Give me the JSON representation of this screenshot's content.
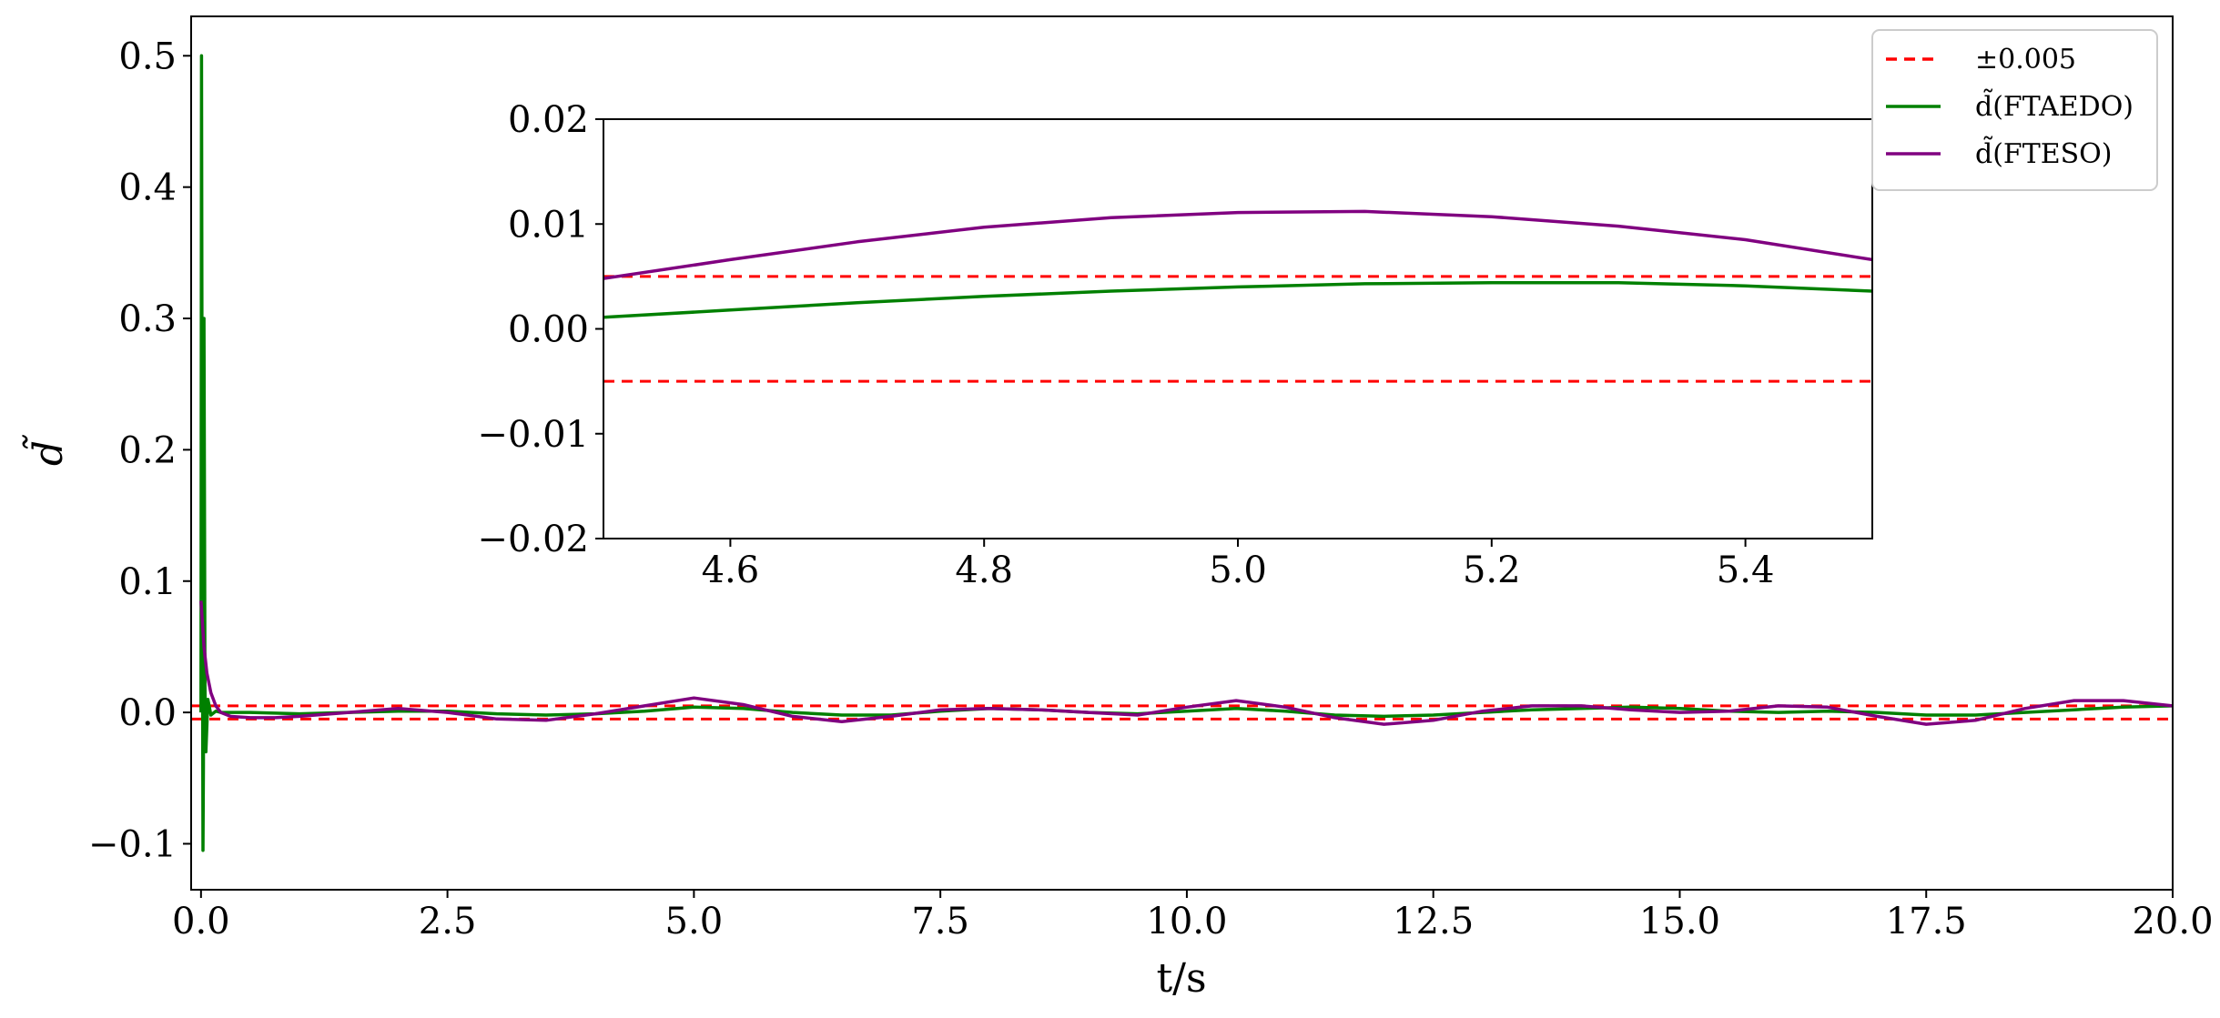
{
  "chart_data": [
    {
      "type": "line",
      "xlabel": "t/s",
      "ylabel": "d̃",
      "xlim": [
        -0.1,
        20.0
      ],
      "ylim": [
        -0.135,
        0.53
      ],
      "xticks": [
        0.0,
        2.5,
        5.0,
        7.5,
        10.0,
        12.5,
        15.0,
        17.5,
        20.0
      ],
      "xtick_labels": [
        "0.0",
        "2.5",
        "5.0",
        "7.5",
        "10.0",
        "12.5",
        "15.0",
        "17.5",
        "20.0"
      ],
      "yticks": [
        -0.1,
        0.0,
        0.1,
        0.2,
        0.3,
        0.4,
        0.5
      ],
      "ytick_labels": [
        "−0.1",
        "0.0",
        "0.1",
        "0.2",
        "0.3",
        "0.4",
        "0.5"
      ],
      "grid": false,
      "legend_position": "top-right",
      "series": [
        {
          "name": "±0.005",
          "color": "#ff0000",
          "style": "dashed",
          "bounds": [
            0.005,
            -0.005
          ]
        },
        {
          "name": "d̃(FTAEDO)",
          "color": "#008000",
          "style": "solid",
          "x": [
            0.0,
            0.005,
            0.01,
            0.015,
            0.02,
            0.025,
            0.03,
            0.04,
            0.05,
            0.07,
            0.1,
            0.15,
            0.2,
            0.3,
            0.5,
            1.0,
            1.5,
            2.0,
            2.5,
            3.0,
            3.5,
            4.0,
            4.5,
            5.0,
            5.5,
            6.0,
            6.5,
            7.0,
            7.5,
            8.0,
            8.5,
            9.0,
            9.5,
            10.0,
            10.5,
            11.0,
            11.5,
            12.0,
            12.5,
            13.0,
            13.5,
            14.0,
            14.5,
            15.0,
            15.5,
            16.0,
            16.5,
            17.0,
            17.5,
            18.0,
            18.5,
            19.0,
            19.5,
            20.0
          ],
          "y": [
            0.0,
            0.5,
            0.28,
            0.05,
            -0.105,
            -0.04,
            0.3,
            0.02,
            -0.03,
            0.01,
            -0.002,
            0.001,
            0.0,
            0.0,
            0.0,
            -0.001,
            0.0,
            0.001,
            0.001,
            -0.001,
            -0.002,
            -0.001,
            0.001,
            0.004,
            0.003,
            0.0,
            -0.002,
            -0.002,
            0.001,
            0.003,
            0.002,
            0.0,
            -0.001,
            0.001,
            0.003,
            0.001,
            -0.002,
            -0.003,
            -0.002,
            0.0,
            0.002,
            0.003,
            0.004,
            0.003,
            0.001,
            0.0,
            0.001,
            0.0,
            -0.002,
            -0.002,
            0.0,
            0.002,
            0.004,
            0.005
          ]
        },
        {
          "name": "d̃(FTESO)",
          "color": "#800080",
          "style": "solid",
          "x": [
            0.0,
            0.03,
            0.06,
            0.1,
            0.15,
            0.2,
            0.3,
            0.5,
            0.75,
            1.0,
            1.5,
            2.0,
            2.5,
            3.0,
            3.5,
            4.0,
            4.5,
            5.0,
            5.5,
            6.0,
            6.5,
            7.0,
            7.5,
            8.0,
            8.5,
            9.0,
            9.5,
            10.0,
            10.5,
            11.0,
            11.5,
            12.0,
            12.5,
            13.0,
            13.5,
            14.0,
            14.5,
            15.0,
            15.5,
            16.0,
            16.5,
            17.0,
            17.5,
            18.0,
            18.5,
            19.0,
            19.5,
            20.0
          ],
          "y": [
            0.085,
            0.05,
            0.03,
            0.015,
            0.005,
            0.0,
            -0.003,
            -0.004,
            -0.004,
            -0.003,
            0.0,
            0.003,
            0.0,
            -0.005,
            -0.006,
            -0.001,
            0.005,
            0.011,
            0.006,
            -0.003,
            -0.007,
            -0.003,
            0.002,
            0.003,
            0.002,
            0.0,
            -0.002,
            0.004,
            0.009,
            0.004,
            -0.004,
            -0.009,
            -0.006,
            0.001,
            0.005,
            0.005,
            0.002,
            0.0,
            0.001,
            0.005,
            0.004,
            -0.003,
            -0.009,
            -0.006,
            0.003,
            0.009,
            0.009,
            0.005
          ]
        }
      ]
    },
    {
      "type": "line",
      "inset": true,
      "xlim": [
        4.5,
        5.5
      ],
      "ylim": [
        -0.02,
        0.02
      ],
      "xticks": [
        4.6,
        4.8,
        5.0,
        5.2,
        5.4
      ],
      "xtick_labels": [
        "4.6",
        "4.8",
        "5.0",
        "5.2",
        "5.4"
      ],
      "yticks": [
        -0.02,
        -0.01,
        0.0,
        0.01,
        0.02
      ],
      "ytick_labels": [
        "−0.02",
        "−0.01",
        "0.00",
        "0.01",
        "0.02"
      ],
      "series": [
        {
          "name": "±0.005",
          "color": "#ff0000",
          "style": "dashed",
          "bounds": [
            0.005,
            -0.005
          ]
        },
        {
          "name": "d̃(FTAEDO)",
          "color": "#008000",
          "style": "solid",
          "x": [
            4.5,
            4.6,
            4.7,
            4.8,
            4.9,
            5.0,
            5.1,
            5.2,
            5.3,
            5.4,
            5.5
          ],
          "y": [
            0.0011,
            0.0018,
            0.0025,
            0.0031,
            0.0036,
            0.004,
            0.0043,
            0.0044,
            0.0044,
            0.0041,
            0.0036
          ]
        },
        {
          "name": "d̃(FTESO)",
          "color": "#800080",
          "style": "solid",
          "x": [
            4.5,
            4.6,
            4.7,
            4.8,
            4.9,
            5.0,
            5.1,
            5.2,
            5.3,
            5.4,
            5.5
          ],
          "y": [
            0.0048,
            0.0066,
            0.0083,
            0.0097,
            0.0106,
            0.0111,
            0.0112,
            0.0107,
            0.0098,
            0.0085,
            0.0066
          ]
        }
      ]
    }
  ]
}
